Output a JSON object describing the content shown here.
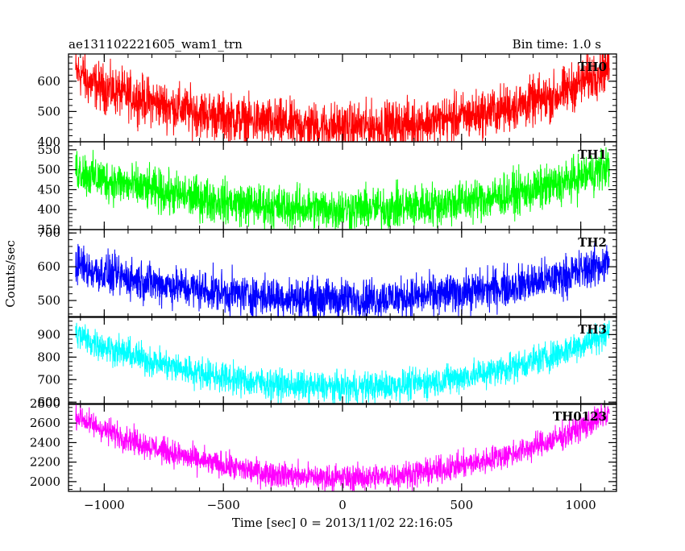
{
  "chart_data": {
    "type": "line",
    "title": "ae131102221605_wam1_trn",
    "subtitle": "Bin time: 1.0 s",
    "xlabel": "Time [sec] 0 = 2013/11/02 22:16:05",
    "ylabel": "Counts/sec",
    "xlim": [
      -1150,
      1150
    ],
    "x_range": [
      -1120,
      1120
    ],
    "xticks": [
      -1000,
      -500,
      0,
      500,
      1000
    ],
    "xtick_labels": [
      "−1000",
      "−500",
      "0",
      "500",
      "1000"
    ],
    "grid": false,
    "legend": "none",
    "series": [
      {
        "name": "TH0",
        "color": "#ff0000",
        "ylim": [
          400,
          690
        ],
        "yticks": [
          400,
          500,
          600
        ],
        "yticklabels": [
          "400",
          "500",
          "600"
        ],
        "center": 450,
        "curvature": 160,
        "edge_boost": 40,
        "noise_amplitude": 55
      },
      {
        "name": "TH1",
        "color": "#00ff00",
        "ylim": [
          350,
          570
        ],
        "yticks": [
          350,
          400,
          450,
          500,
          550
        ],
        "yticklabels": [
          "350",
          "400",
          "450",
          "500",
          "550"
        ],
        "center": 402,
        "curvature": 92,
        "edge_boost": 15,
        "noise_amplitude": 38
      },
      {
        "name": "TH2",
        "color": "#0000ff",
        "ylim": [
          450,
          710
        ],
        "yticks": [
          500,
          600,
          700
        ],
        "yticklabels": [
          "500",
          "600",
          "700"
        ],
        "center": 505,
        "curvature": 95,
        "edge_boost": 15,
        "noise_amplitude": 42
      },
      {
        "name": "TH3",
        "color": "#00ffff",
        "ylim": [
          590,
          980
        ],
        "yticks": [
          600,
          700,
          800,
          900
        ],
        "yticklabels": [
          "600",
          "700",
          "800",
          "900"
        ],
        "center": 665,
        "curvature": 230,
        "edge_boost": 15,
        "noise_amplitude": 48
      },
      {
        "name": "TH0123",
        "color": "#ff00ff",
        "ylim": [
          1900,
          2800
        ],
        "yticks": [
          2000,
          2200,
          2400,
          2600,
          2800
        ],
        "yticklabels": [
          "2000",
          "2200",
          "2400",
          "2600",
          "2800"
        ],
        "center": 2040,
        "curvature": 620,
        "edge_boost": 40,
        "noise_amplitude": 95
      }
    ]
  }
}
